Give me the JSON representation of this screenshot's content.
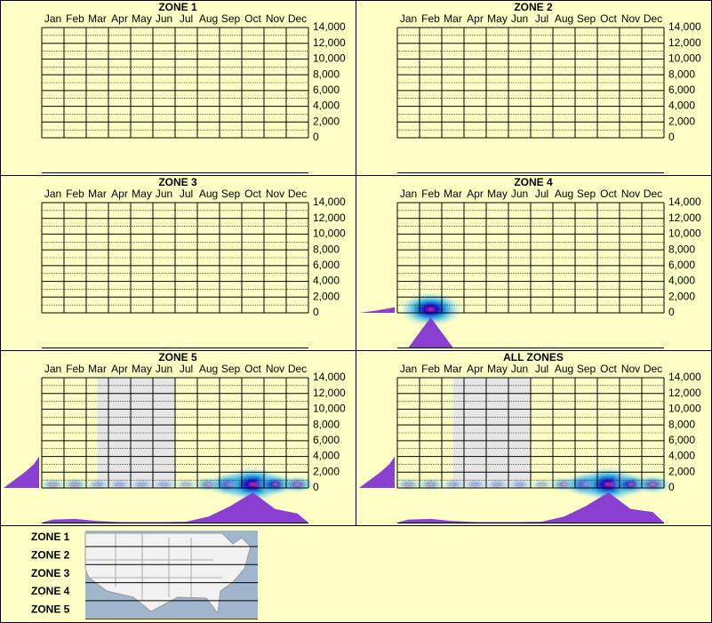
{
  "chart_data": {
    "type": "heatmap-grid",
    "months": [
      "Jan",
      "Feb",
      "Mar",
      "Apr",
      "May",
      "Jun",
      "Jul",
      "Aug",
      "Sep",
      "Oct",
      "Nov",
      "Dec"
    ],
    "ylim": [
      0,
      14000
    ],
    "yticks": [
      0,
      {
        "value": 2000,
        "label": "2,000"
      },
      {
        "value": 4000,
        "label": "4,000"
      },
      {
        "value": 6000,
        "label": "6,000"
      },
      {
        "value": 8000,
        "label": "8,000"
      },
      {
        "value": 10000,
        "label": "10,000"
      },
      {
        "value": 12000,
        "label": "12,000"
      },
      {
        "value": 14000,
        "label": "14,000"
      }
    ],
    "profile_color": "#8a3fd0",
    "panels": [
      {
        "title": "ZONE 1"
      },
      {
        "title": "ZONE 2"
      },
      {
        "title": "ZONE 3"
      },
      {
        "title": "ZONE 4",
        "month_profile": [
          0,
          1,
          0,
          0,
          0,
          0,
          0,
          0,
          0,
          0,
          0,
          0
        ],
        "elevations": [
          0,
          300,
          700
        ],
        "elevation_profile": [
          1,
          0.5,
          0
        ]
      },
      {
        "title": "ZONE 5",
        "month_profile": [
          0.1,
          0.12,
          0.05,
          0.02,
          0.02,
          0.02,
          0.03,
          0.2,
          0.55,
          1,
          0.45,
          0.3
        ],
        "elevations": [
          0,
          1000,
          2000,
          3000,
          4000
        ],
        "elevation_profile": [
          1,
          0.7,
          0.4,
          0.15,
          0
        ]
      },
      {
        "title": "ALL ZONES",
        "month_profile": [
          0.1,
          0.12,
          0.05,
          0.02,
          0.02,
          0.02,
          0.03,
          0.2,
          0.55,
          1,
          0.45,
          0.35
        ],
        "elevations": [
          0,
          1000,
          2000,
          3000,
          4000
        ],
        "elevation_profile": [
          1,
          0.7,
          0.4,
          0.15,
          0
        ]
      }
    ]
  },
  "legend": {
    "zones": [
      "ZONE 1",
      "ZONE 2",
      "ZONE 3",
      "ZONE 4",
      "ZONE 5"
    ]
  }
}
